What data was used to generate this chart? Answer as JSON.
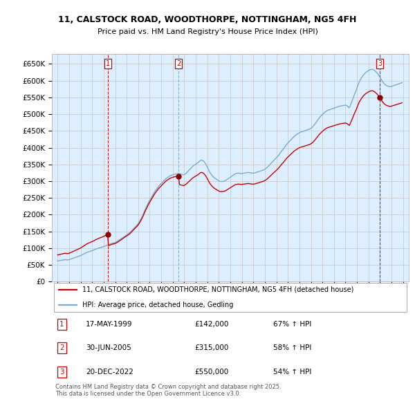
{
  "title_line1": "11, CALSTOCK ROAD, WOODTHORPE, NOTTINGHAM, NG5 4FH",
  "title_line2": "Price paid vs. HM Land Registry's House Price Index (HPI)",
  "ylim": [
    0,
    680000
  ],
  "yticks": [
    0,
    50000,
    100000,
    150000,
    200000,
    250000,
    300000,
    350000,
    400000,
    450000,
    500000,
    550000,
    600000,
    650000
  ],
  "ytick_labels": [
    "£0",
    "£50K",
    "£100K",
    "£150K",
    "£200K",
    "£250K",
    "£300K",
    "£350K",
    "£400K",
    "£450K",
    "£500K",
    "£550K",
    "£600K",
    "£650K"
  ],
  "xlim_start": 1994.5,
  "xlim_end": 2025.5,
  "xtick_years": [
    1995,
    1996,
    1997,
    1998,
    1999,
    2000,
    2001,
    2002,
    2003,
    2004,
    2005,
    2006,
    2007,
    2008,
    2009,
    2010,
    2011,
    2012,
    2013,
    2014,
    2015,
    2016,
    2017,
    2018,
    2019,
    2020,
    2021,
    2022,
    2023,
    2024,
    2025
  ],
  "sale_color": "#cc0000",
  "hpi_color": "#7aaad0",
  "vline_color": "#cc0000",
  "vline2_color": "#7aaad0",
  "grid_color": "#cccccc",
  "background_color": "#ddeeff",
  "sales": [
    {
      "year": 1999.38,
      "price": 142000,
      "label": "1"
    },
    {
      "year": 2005.5,
      "price": 315000,
      "label": "2"
    },
    {
      "year": 2022.97,
      "price": 550000,
      "label": "3"
    }
  ],
  "table_rows": [
    {
      "num": "1",
      "date": "17-MAY-1999",
      "price": "£142,000",
      "change": "67% ↑ HPI"
    },
    {
      "num": "2",
      "date": "30-JUN-2005",
      "price": "£315,000",
      "change": "58% ↑ HPI"
    },
    {
      "num": "3",
      "date": "20-DEC-2022",
      "price": "£550,000",
      "change": "54% ↑ HPI"
    }
  ],
  "legend_line1": "11, CALSTOCK ROAD, WOODTHORPE, NOTTINGHAM, NG5 4FH (detached house)",
  "legend_line2": "HPI: Average price, detached house, Gedling",
  "footer": "Contains HM Land Registry data © Crown copyright and database right 2025.\nThis data is licensed under the Open Government Licence v3.0.",
  "hpi_index": {
    "years": [
      1995.0,
      1995.083,
      1995.167,
      1995.25,
      1995.333,
      1995.417,
      1995.5,
      1995.583,
      1995.667,
      1995.75,
      1995.833,
      1995.917,
      1996.0,
      1996.083,
      1996.167,
      1996.25,
      1996.333,
      1996.417,
      1996.5,
      1996.583,
      1996.667,
      1996.75,
      1996.833,
      1996.917,
      1997.0,
      1997.083,
      1997.167,
      1997.25,
      1997.333,
      1997.417,
      1997.5,
      1997.583,
      1997.667,
      1997.75,
      1997.833,
      1997.917,
      1998.0,
      1998.083,
      1998.167,
      1998.25,
      1998.333,
      1998.417,
      1998.5,
      1998.583,
      1998.667,
      1998.75,
      1998.833,
      1998.917,
      1999.0,
      1999.083,
      1999.167,
      1999.25,
      1999.333,
      1999.417,
      1999.5,
      1999.583,
      1999.667,
      1999.75,
      1999.833,
      1999.917,
      2000.0,
      2000.083,
      2000.167,
      2000.25,
      2000.333,
      2000.417,
      2000.5,
      2000.583,
      2000.667,
      2000.75,
      2000.833,
      2000.917,
      2001.0,
      2001.083,
      2001.167,
      2001.25,
      2001.333,
      2001.417,
      2001.5,
      2001.583,
      2001.667,
      2001.75,
      2001.833,
      2001.917,
      2002.0,
      2002.083,
      2002.167,
      2002.25,
      2002.333,
      2002.417,
      2002.5,
      2002.583,
      2002.667,
      2002.75,
      2002.833,
      2002.917,
      2003.0,
      2003.083,
      2003.167,
      2003.25,
      2003.333,
      2003.417,
      2003.5,
      2003.583,
      2003.667,
      2003.75,
      2003.833,
      2003.917,
      2004.0,
      2004.083,
      2004.167,
      2004.25,
      2004.333,
      2004.417,
      2004.5,
      2004.583,
      2004.667,
      2004.75,
      2004.833,
      2004.917,
      2005.0,
      2005.083,
      2005.167,
      2005.25,
      2005.333,
      2005.417,
      2005.5,
      2005.583,
      2005.667,
      2005.75,
      2005.833,
      2005.917,
      2006.0,
      2006.083,
      2006.167,
      2006.25,
      2006.333,
      2006.417,
      2006.5,
      2006.583,
      2006.667,
      2006.75,
      2006.833,
      2006.917,
      2007.0,
      2007.083,
      2007.167,
      2007.25,
      2007.333,
      2007.417,
      2007.5,
      2007.583,
      2007.667,
      2007.75,
      2007.833,
      2007.917,
      2008.0,
      2008.083,
      2008.167,
      2008.25,
      2008.333,
      2008.417,
      2008.5,
      2008.583,
      2008.667,
      2008.75,
      2008.833,
      2008.917,
      2009.0,
      2009.083,
      2009.167,
      2009.25,
      2009.333,
      2009.417,
      2009.5,
      2009.583,
      2009.667,
      2009.75,
      2009.833,
      2009.917,
      2010.0,
      2010.083,
      2010.167,
      2010.25,
      2010.333,
      2010.417,
      2010.5,
      2010.583,
      2010.667,
      2010.75,
      2010.833,
      2010.917,
      2011.0,
      2011.083,
      2011.167,
      2011.25,
      2011.333,
      2011.417,
      2011.5,
      2011.583,
      2011.667,
      2011.75,
      2011.833,
      2011.917,
      2012.0,
      2012.083,
      2012.167,
      2012.25,
      2012.333,
      2012.417,
      2012.5,
      2012.583,
      2012.667,
      2012.75,
      2012.833,
      2012.917,
      2013.0,
      2013.083,
      2013.167,
      2013.25,
      2013.333,
      2013.417,
      2013.5,
      2013.583,
      2013.667,
      2013.75,
      2013.833,
      2013.917,
      2014.0,
      2014.083,
      2014.167,
      2014.25,
      2014.333,
      2014.417,
      2014.5,
      2014.583,
      2014.667,
      2014.75,
      2014.833,
      2014.917,
      2015.0,
      2015.083,
      2015.167,
      2015.25,
      2015.333,
      2015.417,
      2015.5,
      2015.583,
      2015.667,
      2015.75,
      2015.833,
      2015.917,
      2016.0,
      2016.083,
      2016.167,
      2016.25,
      2016.333,
      2016.417,
      2016.5,
      2016.583,
      2016.667,
      2016.75,
      2016.833,
      2016.917,
      2017.0,
      2017.083,
      2017.167,
      2017.25,
      2017.333,
      2017.417,
      2017.5,
      2017.583,
      2017.667,
      2017.75,
      2017.833,
      2017.917,
      2018.0,
      2018.083,
      2018.167,
      2018.25,
      2018.333,
      2018.417,
      2018.5,
      2018.583,
      2018.667,
      2018.75,
      2018.833,
      2018.917,
      2019.0,
      2019.083,
      2019.167,
      2019.25,
      2019.333,
      2019.417,
      2019.5,
      2019.583,
      2019.667,
      2019.75,
      2019.833,
      2019.917,
      2020.0,
      2020.083,
      2020.167,
      2020.25,
      2020.333,
      2020.417,
      2020.5,
      2020.583,
      2020.667,
      2020.75,
      2020.833,
      2020.917,
      2021.0,
      2021.083,
      2021.167,
      2021.25,
      2021.333,
      2021.417,
      2021.5,
      2021.583,
      2021.667,
      2021.75,
      2021.833,
      2021.917,
      2022.0,
      2022.083,
      2022.167,
      2022.25,
      2022.333,
      2022.417,
      2022.5,
      2022.583,
      2022.667,
      2022.75,
      2022.833,
      2022.917,
      2023.0,
      2023.083,
      2023.167,
      2023.25,
      2023.333,
      2023.417,
      2023.5,
      2023.583,
      2023.667,
      2023.75,
      2023.833,
      2023.917,
      2024.0,
      2024.083,
      2024.167,
      2024.25,
      2024.333,
      2024.417,
      2024.5,
      2024.583,
      2024.667,
      2024.75,
      2024.833,
      2024.917
    ],
    "values": [
      62000,
      62500,
      63000,
      63500,
      64000,
      64500,
      65000,
      65500,
      66000,
      65500,
      65000,
      65500,
      66000,
      67000,
      68000,
      69000,
      70000,
      71000,
      72000,
      73000,
      74000,
      75000,
      76000,
      77000,
      78000,
      79500,
      81000,
      82500,
      84000,
      85500,
      87000,
      88000,
      89000,
      90000,
      91000,
      92000,
      93000,
      94000,
      95000,
      96500,
      97500,
      98500,
      99500,
      100500,
      101500,
      102000,
      103000,
      104000,
      105000,
      106000,
      107000,
      108000,
      109500,
      110500,
      111500,
      112500,
      113500,
      114500,
      115500,
      116000,
      117000,
      118500,
      120000,
      122000,
      124000,
      126000,
      128000,
      130000,
      132000,
      134000,
      136000,
      138000,
      140000,
      142000,
      144000,
      146000,
      149000,
      152000,
      155000,
      158000,
      161000,
      164000,
      167000,
      170000,
      174000,
      178000,
      183000,
      188000,
      194000,
      200000,
      207000,
      214000,
      220000,
      226000,
      232000,
      238000,
      243000,
      248000,
      253000,
      258000,
      263000,
      268000,
      272000,
      276000,
      280000,
      284000,
      287000,
      290000,
      293000,
      296000,
      299000,
      302000,
      305000,
      308000,
      310000,
      312000,
      314000,
      316000,
      317000,
      318000,
      319000,
      320000,
      321000,
      321500,
      322000,
      322500,
      322500,
      322000,
      321500,
      321000,
      320000,
      319000,
      320000,
      322000,
      324000,
      327000,
      330000,
      333000,
      336000,
      339000,
      342000,
      345000,
      347000,
      349000,
      351000,
      353000,
      355000,
      357000,
      360000,
      362000,
      363000,
      362000,
      360000,
      357000,
      353000,
      348000,
      342000,
      336000,
      330000,
      325000,
      321000,
      317000,
      314000,
      311000,
      309000,
      307000,
      305000,
      303000,
      301000,
      300000,
      299000,
      299000,
      299500,
      300000,
      301000,
      302000,
      304000,
      306000,
      308000,
      310000,
      312000,
      314000,
      316000,
      318000,
      320000,
      322000,
      323000,
      323500,
      324000,
      324000,
      323500,
      323000,
      323000,
      323500,
      324000,
      324500,
      325000,
      325500,
      326000,
      326000,
      325500,
      325000,
      324500,
      324000,
      324000,
      324500,
      325000,
      326000,
      327000,
      328000,
      329000,
      330000,
      331000,
      332000,
      333000,
      334000,
      336000,
      338000,
      340000,
      343000,
      346000,
      349000,
      352000,
      355000,
      358000,
      361000,
      364000,
      367000,
      370000,
      373000,
      376000,
      380000,
      384000,
      388000,
      392000,
      395000,
      399000,
      403000,
      407000,
      411000,
      414000,
      417000,
      420000,
      423000,
      426000,
      429000,
      432000,
      435000,
      437000,
      439000,
      441000,
      443000,
      445000,
      446000,
      447000,
      448000,
      449000,
      450000,
      451000,
      452000,
      453000,
      454000,
      455000,
      456000,
      458000,
      460000,
      463000,
      466000,
      470000,
      474000,
      478000,
      482000,
      486000,
      490000,
      493000,
      496000,
      499000,
      502000,
      505000,
      507000,
      509000,
      511000,
      512000,
      513000,
      514000,
      515000,
      516000,
      517000,
      518000,
      519000,
      520000,
      521000,
      522000,
      523000,
      524000,
      524500,
      525000,
      525500,
      526000,
      526500,
      527000,
      526000,
      524000,
      521000,
      519000,
      525000,
      533000,
      540000,
      548000,
      556000,
      563000,
      570000,
      578000,
      586000,
      594000,
      600000,
      605000,
      610000,
      614000,
      618000,
      621000,
      624000,
      626000,
      628000,
      630000,
      632000,
      633000,
      633500,
      634000,
      633000,
      631000,
      629000,
      626000,
      623000,
      619000,
      615000,
      610000,
      605000,
      600000,
      596000,
      592000,
      589000,
      587000,
      585000,
      584000,
      583000,
      582000,
      582000,
      583000,
      584000,
      585000,
      586000,
      587000,
      588000,
      589000,
      590000,
      591000,
      592000,
      593000,
      594000
    ]
  },
  "sale1_year": 1999.38,
  "sale1_price": 142000,
  "sale2_year": 2005.5,
  "sale2_price": 315000,
  "sale3_year": 2022.97,
  "sale3_price": 550000
}
